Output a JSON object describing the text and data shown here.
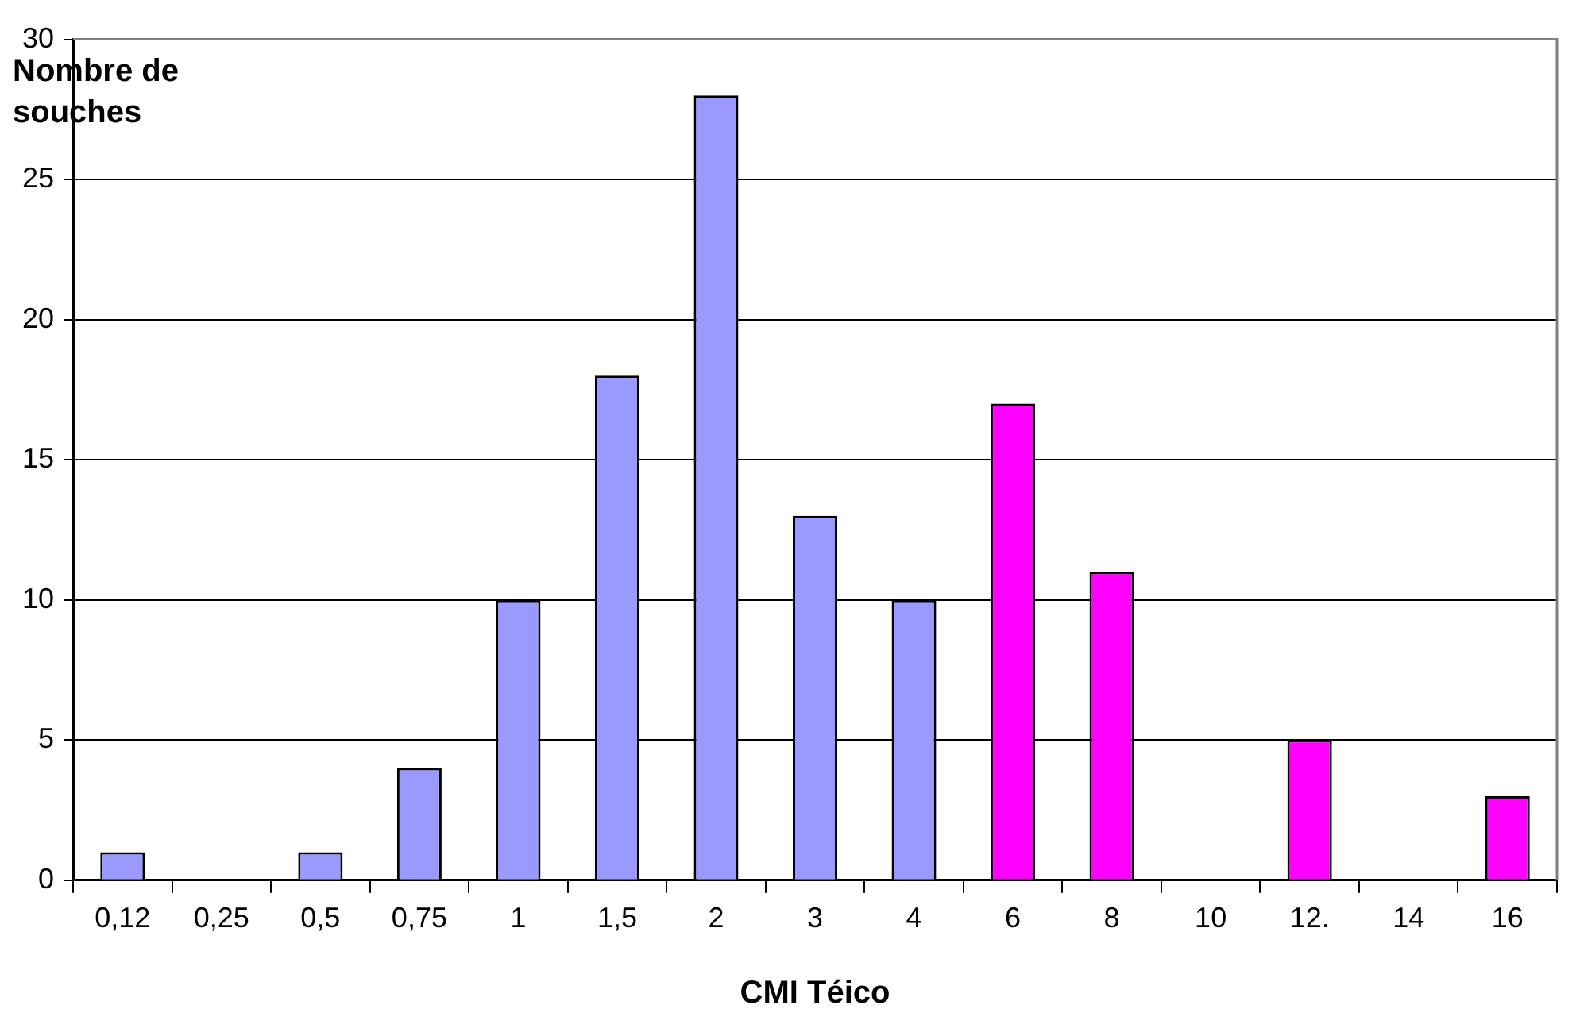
{
  "chart_data": {
    "type": "bar",
    "xlabel": "CMI Téico",
    "ylabel": "Nombre de souches",
    "categories": [
      "0,12",
      "0,25",
      "0,5",
      "0,75",
      "1",
      "1,5",
      "2",
      "3",
      "4",
      "6",
      "8",
      "10",
      "12.",
      "14",
      "16"
    ],
    "values": [
      1,
      0,
      1,
      4,
      10,
      18,
      28,
      13,
      10,
      17,
      11,
      0,
      5,
      0,
      3
    ],
    "colors": [
      "#9999ff",
      "#9999ff",
      "#9999ff",
      "#9999ff",
      "#9999ff",
      "#9999ff",
      "#9999ff",
      "#9999ff",
      "#9999ff",
      "#ff00ff",
      "#ff00ff",
      "#ff00ff",
      "#ff00ff",
      "#ff00ff",
      "#ff00ff"
    ],
    "ylim": [
      0,
      30
    ],
    "yticks": [
      0,
      5,
      10,
      15,
      20,
      25,
      30
    ],
    "grid": "y",
    "legend": false
  }
}
